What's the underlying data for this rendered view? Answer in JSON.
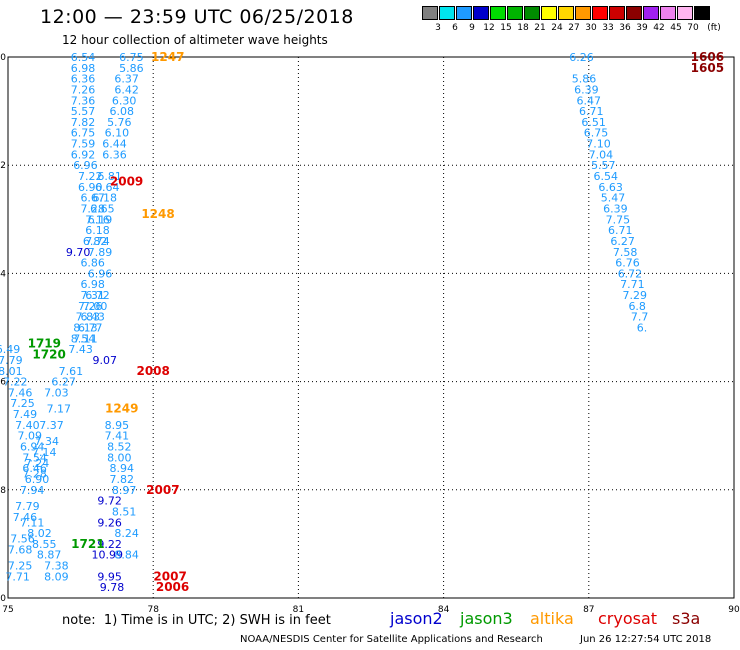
{
  "title": "12:00 — 23:59 UTC 06/25/2018",
  "subtitle": "12 hour collection of altimeter wave heights",
  "legend": {
    "unit": "(ft)",
    "items": [
      {
        "color": "#808080",
        "label": "3"
      },
      {
        "color": "#00e5ee",
        "label": "6"
      },
      {
        "color": "#1e9bff",
        "label": "9"
      },
      {
        "color": "#0000cd",
        "label": "12"
      },
      {
        "color": "#00dd00",
        "label": "15"
      },
      {
        "color": "#00b400",
        "label": "18"
      },
      {
        "color": "#008b00",
        "label": "21"
      },
      {
        "color": "#ffff00",
        "label": "24"
      },
      {
        "color": "#ffd700",
        "label": "27"
      },
      {
        "color": "#ff9900",
        "label": "30"
      },
      {
        "color": "#ff0000",
        "label": "33"
      },
      {
        "color": "#cd0000",
        "label": "36"
      },
      {
        "color": "#8b0000",
        "label": "39"
      },
      {
        "color": "#a020f0",
        "label": "42"
      },
      {
        "color": "#ee82ee",
        "label": "45"
      },
      {
        "color": "#ffb6f0",
        "label": "70"
      },
      {
        "color": "#000000",
        "label": ""
      }
    ]
  },
  "axes": {
    "x_ticks": [
      "75",
      "78",
      "81",
      "84",
      "87",
      "90"
    ],
    "y_ticks": [
      "0",
      "-2",
      "-4",
      "-6",
      "-8",
      "-10"
    ],
    "xlim": [
      75,
      90
    ],
    "ylim": [
      -10,
      0
    ]
  },
  "footer": {
    "note": "note:  1) Time is in UTC; 2) SWH is in feet",
    "satellites": [
      {
        "name": "jason2",
        "color": "#0000cd"
      },
      {
        "name": "jason3",
        "color": "#009900"
      },
      {
        "name": "altika",
        "color": "#ff9900"
      },
      {
        "name": "cryosat",
        "color": "#dd0000"
      },
      {
        "name": "s3a",
        "color": "#8b0000"
      }
    ],
    "credit": "NOAA/NESDIS Center for Satellite Applications and Research",
    "timestamp": "Jun 26 12:27:54 UTC 2018"
  },
  "chart_data": {
    "type": "scatter",
    "title": "12:00 — 23:59 UTC 06/25/2018",
    "subtitle": "12 hour collection of altimeter wave heights",
    "xlim": [
      75,
      90
    ],
    "ylim": [
      -10,
      0
    ],
    "grid": true,
    "series": [
      {
        "name": "jason3",
        "color": "#1e9bff",
        "points": [
          [
            76.55,
            0,
            "6.54"
          ],
          [
            76.55,
            -0.2,
            "6.98"
          ],
          [
            76.55,
            -0.4,
            "6.36"
          ],
          [
            76.55,
            -0.6,
            "7.26"
          ],
          [
            76.55,
            -0.8,
            "7.36"
          ],
          [
            76.55,
            -1.0,
            "5.57"
          ],
          [
            76.55,
            -1.2,
            "7.82"
          ],
          [
            76.55,
            -1.4,
            "6.75"
          ],
          [
            76.55,
            -1.6,
            "7.59"
          ],
          [
            76.55,
            -1.8,
            "6.92"
          ],
          [
            76.6,
            -2.0,
            "6.96"
          ],
          [
            76.7,
            -2.2,
            "7.22"
          ],
          [
            76.7,
            -2.4,
            "6.90"
          ],
          [
            76.75,
            -2.6,
            "6.67"
          ],
          [
            76.75,
            -2.8,
            "7.28"
          ],
          [
            76.85,
            -3.0,
            "7.16"
          ],
          [
            76.85,
            -3.4,
            "7.74"
          ],
          [
            76.9,
            -3.6,
            "7.89"
          ],
          [
            76.9,
            -4.0,
            "6.96"
          ],
          [
            76.85,
            -4.4,
            "6.72"
          ],
          [
            76.8,
            -4.6,
            "7.00"
          ],
          [
            76.75,
            -4.8,
            "6.43"
          ],
          [
            76.7,
            -5.0,
            "6.77"
          ],
          [
            76.6,
            -5.2,
            "7.11"
          ],
          [
            76.5,
            -5.4,
            "7.43"
          ],
          [
            76.3,
            -5.8,
            "7.61"
          ],
          [
            76.15,
            -6.0,
            "6.27"
          ],
          [
            76.0,
            -6.2,
            "7.03"
          ],
          [
            76.05,
            -6.5,
            "7.17"
          ],
          [
            75.9,
            -6.8,
            "7.37"
          ],
          [
            75.8,
            -7.1,
            "7.34"
          ],
          [
            75.75,
            -7.3,
            "7.14"
          ],
          [
            75.6,
            -7.5,
            "7.24"
          ],
          [
            75.55,
            -7.7,
            "7.28"
          ],
          [
            75.5,
            -8.0,
            "7.94"
          ],
          [
            75.4,
            -8.3,
            "7.79"
          ],
          [
            75.5,
            -8.6,
            "7.11"
          ],
          [
            75.65,
            -8.8,
            "8.02"
          ],
          [
            75.75,
            -9.0,
            "8.55"
          ],
          [
            75.85,
            -9.2,
            "8.87"
          ],
          [
            76.0,
            -9.4,
            "7.38"
          ],
          [
            76.0,
            -9.6,
            "8.09"
          ],
          [
            75.0,
            -5.4,
            "6.49"
          ],
          [
            75.05,
            -5.6,
            "7.79"
          ],
          [
            75.05,
            -5.8,
            "8.01"
          ],
          [
            75.15,
            -6.0,
            "7.22"
          ],
          [
            75.25,
            -6.2,
            "7.46"
          ],
          [
            75.3,
            -6.4,
            "7.25"
          ],
          [
            75.35,
            -6.6,
            "7.49"
          ],
          [
            75.4,
            -6.8,
            "7.40"
          ],
          [
            75.45,
            -7.0,
            "7.09"
          ],
          [
            75.5,
            -7.2,
            "6.94"
          ],
          [
            75.55,
            -7.4,
            "7.54"
          ],
          [
            75.55,
            -7.6,
            "6.46"
          ],
          [
            75.6,
            -7.8,
            "6.90"
          ],
          [
            75.35,
            -8.5,
            "7.46"
          ],
          [
            75.3,
            -8.9,
            "7.56"
          ],
          [
            75.25,
            -9.1,
            "7.68"
          ],
          [
            75.25,
            -9.4,
            "7.25"
          ],
          [
            75.2,
            -9.6,
            "7.71"
          ],
          [
            77.55,
            0,
            "6.75"
          ],
          [
            77.55,
            -0.2,
            "5.86"
          ],
          [
            77.45,
            -0.4,
            "6.37"
          ],
          [
            77.45,
            -0.6,
            "6.42"
          ],
          [
            77.4,
            -0.8,
            "6.30"
          ],
          [
            77.35,
            -1.0,
            "6.08"
          ],
          [
            77.3,
            -1.2,
            "5.76"
          ],
          [
            77.25,
            -1.4,
            "6.10"
          ],
          [
            77.2,
            -1.6,
            "6.44"
          ],
          [
            77.2,
            -1.8,
            "6.36"
          ],
          [
            77.1,
            -2.2,
            "6.81"
          ],
          [
            77.05,
            -2.4,
            "6.64"
          ],
          [
            77.0,
            -2.6,
            "6.18"
          ],
          [
            76.95,
            -2.8,
            "6.65"
          ],
          [
            76.9,
            -3.0,
            "6.19"
          ],
          [
            76.85,
            -3.2,
            "6.18"
          ],
          [
            76.8,
            -3.4,
            "6.82"
          ],
          [
            76.75,
            -3.8,
            "6.86"
          ],
          [
            76.75,
            -4.2,
            "6.98"
          ],
          [
            76.75,
            -4.4,
            "7.31"
          ],
          [
            76.7,
            -4.6,
            "7.26"
          ],
          [
            76.65,
            -4.8,
            "7.83"
          ],
          [
            76.6,
            -5.0,
            "8.13"
          ],
          [
            76.55,
            -5.2,
            "8.54"
          ],
          [
            86.85,
            0,
            "6.26"
          ],
          [
            86.9,
            -0.4,
            "5.86"
          ],
          [
            86.95,
            -0.6,
            "6.39"
          ],
          [
            87.0,
            -0.8,
            "6.47"
          ],
          [
            87.05,
            -1.0,
            "6.71"
          ],
          [
            87.1,
            -1.2,
            "6.51"
          ],
          [
            87.15,
            -1.4,
            "6.75"
          ],
          [
            87.2,
            -1.6,
            "7.10"
          ],
          [
            87.25,
            -1.8,
            "7.04"
          ],
          [
            87.3,
            -2.0,
            "5.57"
          ],
          [
            87.35,
            -2.2,
            "6.54"
          ],
          [
            87.45,
            -2.4,
            "6.63"
          ],
          [
            87.5,
            -2.6,
            "5.47"
          ],
          [
            87.55,
            -2.8,
            "6.39"
          ],
          [
            87.6,
            -3.0,
            "7.75"
          ],
          [
            87.65,
            -3.2,
            "6.71"
          ],
          [
            87.7,
            -3.4,
            "6.27"
          ],
          [
            87.75,
            -3.6,
            "7.58"
          ],
          [
            87.8,
            -3.8,
            "6.76"
          ],
          [
            87.85,
            -4.0,
            "6.72"
          ],
          [
            87.9,
            -4.2,
            "7.71"
          ],
          [
            87.95,
            -4.4,
            "7.29"
          ],
          [
            88.0,
            -4.6,
            "6.8"
          ],
          [
            88.05,
            -4.8,
            "7.7"
          ],
          [
            88.1,
            -5.0,
            "6."
          ]
        ]
      },
      {
        "name": "jason2",
        "color": "#0000cd",
        "points": [
          [
            76.45,
            -3.6,
            "9.70"
          ],
          [
            77.0,
            -5.6,
            "9.07"
          ],
          [
            77.1,
            -8.2,
            "9.72"
          ],
          [
            77.1,
            -8.6,
            "9.26"
          ],
          [
            77.1,
            -9.0,
            "9.22"
          ],
          [
            77.05,
            -9.2,
            "10.99"
          ],
          [
            77.1,
            -9.6,
            "9.95"
          ],
          [
            77.15,
            -9.8,
            "9.78"
          ]
        ]
      },
      {
        "name": "jason3-green",
        "color": "#009900",
        "points": [
          [
            75.75,
            -5.3,
            "1719"
          ],
          [
            75.85,
            -5.5,
            "1720"
          ],
          [
            76.65,
            -9.0,
            "1721"
          ]
        ]
      },
      {
        "name": "altika",
        "color": "#ff9900",
        "points": [
          [
            78.3,
            0,
            "1247"
          ],
          [
            78.1,
            -2.9,
            "1248"
          ],
          [
            77.35,
            -6.5,
            "1249"
          ]
        ]
      },
      {
        "name": "cryosat",
        "color": "#dd0000",
        "points": [
          [
            77.45,
            -2.3,
            "2009"
          ],
          [
            78.0,
            -5.8,
            "2008"
          ],
          [
            78.2,
            -8.0,
            "2007"
          ],
          [
            78.35,
            -9.6,
            "2007"
          ],
          [
            78.4,
            -9.8,
            "2006"
          ]
        ]
      },
      {
        "name": "s3a",
        "color": "#8b0000",
        "points": [
          [
            89.45,
            0,
            "1606"
          ],
          [
            89.45,
            -0.2,
            "1605"
          ]
        ]
      },
      {
        "name": "jason3-extra",
        "color": "#1e9bff",
        "points": [
          [
            77.25,
            -6.8,
            "8.95"
          ],
          [
            77.25,
            -7.0,
            "7.41"
          ],
          [
            77.3,
            -7.2,
            "8.52"
          ],
          [
            77.3,
            -7.4,
            "8.00"
          ],
          [
            77.35,
            -7.6,
            "8.94"
          ],
          [
            77.35,
            -7.8,
            "7.82"
          ],
          [
            77.4,
            -8.0,
            "8.97"
          ],
          [
            77.4,
            -8.4,
            "8.51"
          ],
          [
            77.45,
            -8.8,
            "8.24"
          ],
          [
            77.45,
            -9.2,
            "8.84"
          ]
        ]
      }
    ]
  }
}
